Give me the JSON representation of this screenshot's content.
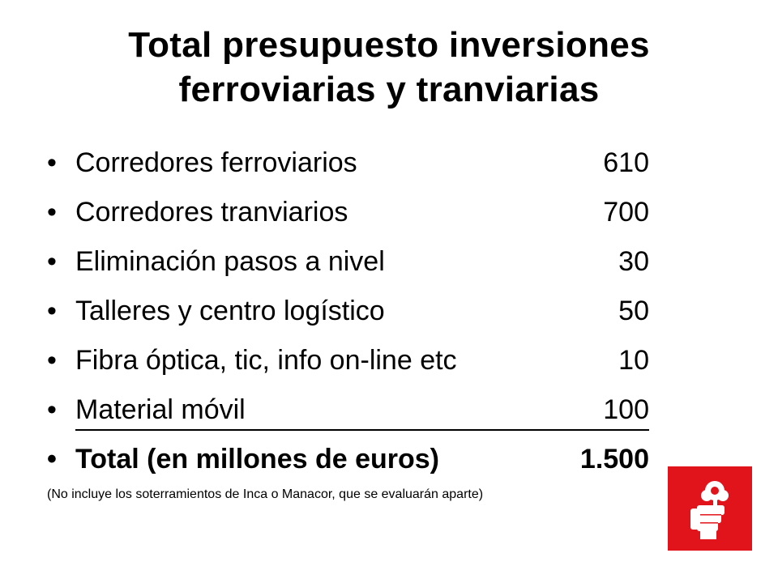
{
  "slide": {
    "title_line1": "Total presupuesto inversiones",
    "title_line2": "ferroviarias y tranviarias"
  },
  "items": [
    {
      "label": "Corredores ferroviarios",
      "value": "610"
    },
    {
      "label": "Corredores tranviarios",
      "value": "700"
    },
    {
      "label": "Eliminación pasos a nivel",
      "value": "30"
    },
    {
      "label": "Talleres y centro logístico",
      "value": "50"
    },
    {
      "label": "Fibra óptica, tic, info on-line etc",
      "value": "10"
    },
    {
      "label": "Material móvil",
      "value": "100"
    }
  ],
  "total": {
    "label": "Total (en millones de euros)",
    "value": "1.500"
  },
  "bullet": "•",
  "footnote": "(No incluye los soterramientos de Inca o Manacor, que se evaluarán aparte)",
  "logo": {
    "icon": "fist-and-rose-icon",
    "background": "#e1141b",
    "foreground": "#ffffff"
  }
}
